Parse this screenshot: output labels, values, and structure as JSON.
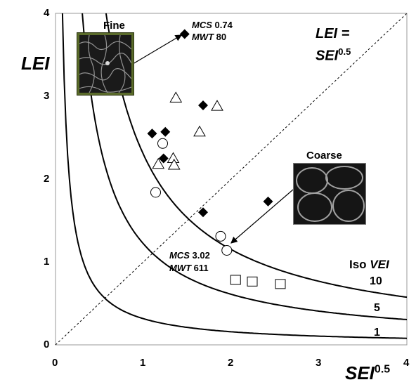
{
  "chart_data": {
    "type": "scatter",
    "xlim": [
      0,
      4
    ],
    "ylim": [
      0,
      4
    ],
    "x_ticks": [
      "0",
      "1",
      "2",
      "3",
      "4"
    ],
    "y_ticks": [
      "0",
      "1",
      "2",
      "3",
      "4"
    ],
    "xlabel": "SEI",
    "xlabel_sup": "0.5",
    "ylabel": "LEI",
    "reference_line": {
      "label": "LEI =",
      "label2": "SEI",
      "label2_sup": "0.5"
    },
    "iso_curves": [
      {
        "label": "1",
        "k": 0.316
      },
      {
        "label": "5",
        "k": 1.22
      },
      {
        "label": "10",
        "k": 2.3
      }
    ],
    "iso_title": {
      "prefix": "Iso ",
      "name": "VEI"
    },
    "series": [
      {
        "marker": "diamond-filled",
        "points": [
          [
            1.47,
            3.75
          ],
          [
            1.1,
            2.55
          ],
          [
            1.25,
            2.57
          ],
          [
            1.23,
            2.25
          ],
          [
            1.68,
            2.89
          ],
          [
            1.68,
            1.6
          ],
          [
            2.42,
            1.73
          ]
        ]
      },
      {
        "marker": "triangle-open",
        "points": [
          [
            1.37,
            2.98
          ],
          [
            1.84,
            2.88
          ],
          [
            1.64,
            2.57
          ],
          [
            1.17,
            2.18
          ],
          [
            1.34,
            2.25
          ],
          [
            1.35,
            2.17
          ]
        ]
      },
      {
        "marker": "circle-open",
        "points": [
          [
            1.22,
            2.43
          ],
          [
            1.14,
            1.84
          ],
          [
            1.88,
            1.31
          ],
          [
            1.95,
            1.14
          ]
        ]
      },
      {
        "marker": "square-open",
        "points": [
          [
            2.05,
            0.78
          ],
          [
            2.24,
            0.76
          ],
          [
            2.56,
            0.73
          ]
        ]
      }
    ],
    "annotations": {
      "fine_label": "Fine",
      "coarse_label": "Coarse",
      "fine_mcs_key": "MCS",
      "fine_mcs_val": " 0.74",
      "fine_mwt_key": "MWT",
      "fine_mwt_val": " 80",
      "coarse_mcs_key": "MCS",
      "coarse_mcs_val": " 3.02",
      "coarse_mwt_key": "MWT",
      "coarse_mwt_val": " 611"
    }
  }
}
